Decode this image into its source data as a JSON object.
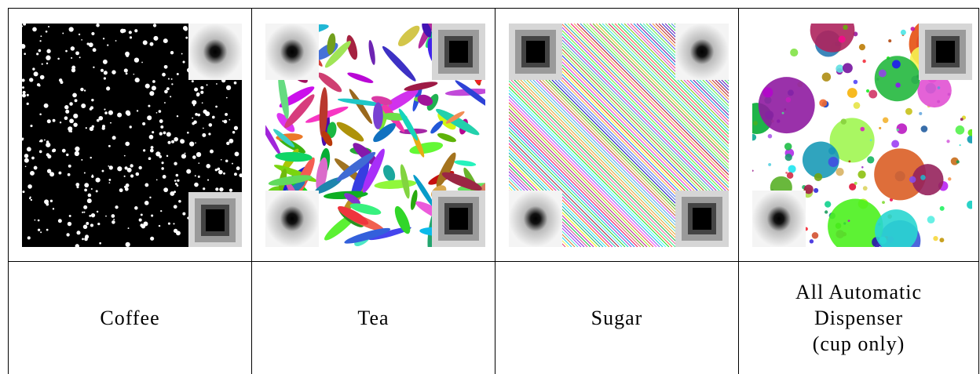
{
  "table": {
    "rows": [
      [],
      [
        "Coffee",
        "Tea",
        "Sugar",
        [
          "All Automatic",
          "Dispenser",
          "(cup only)"
        ]
      ]
    ]
  }
}
